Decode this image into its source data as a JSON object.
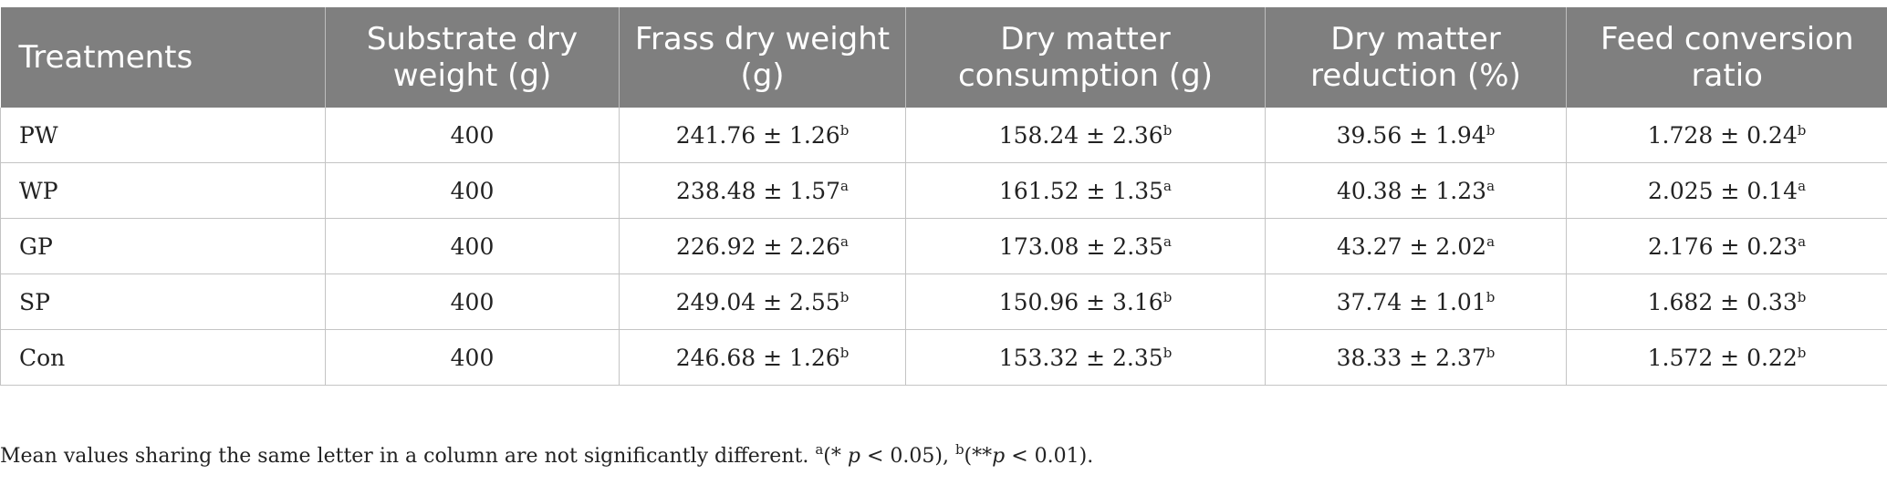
{
  "table": {
    "headers": [
      "Treatments",
      "Substrate dry weight (g)",
      "Frass dry weight (g)",
      "Dry matter consumption (g)",
      "Dry matter reduction (%)",
      "Feed conversion ratio"
    ],
    "rows": [
      {
        "treatment": "PW",
        "substrate": "400",
        "frass": {
          "value": "241.76 ± 1.26",
          "sup": "b"
        },
        "consumption": {
          "value": "158.24 ± 2.36",
          "sup": "b"
        },
        "reduction": {
          "value": "39.56 ± 1.94",
          "sup": "b"
        },
        "fcr": {
          "value": "1.728 ± 0.24",
          "sup": "b"
        }
      },
      {
        "treatment": "WP",
        "substrate": "400",
        "frass": {
          "value": "238.48 ± 1.57",
          "sup": "a"
        },
        "consumption": {
          "value": "161.52 ± 1.35",
          "sup": "a"
        },
        "reduction": {
          "value": "40.38 ± 1.23",
          "sup": "a"
        },
        "fcr": {
          "value": "2.025 ± 0.14",
          "sup": "a"
        }
      },
      {
        "treatment": "GP",
        "substrate": "400",
        "frass": {
          "value": "226.92 ± 2.26",
          "sup": "a"
        },
        "consumption": {
          "value": "173.08 ± 2.35",
          "sup": "a"
        },
        "reduction": {
          "value": "43.27 ± 2.02",
          "sup": "a"
        },
        "fcr": {
          "value": "2.176 ± 0.23",
          "sup": "a"
        }
      },
      {
        "treatment": "SP",
        "substrate": "400",
        "frass": {
          "value": "249.04 ± 2.55",
          "sup": "b"
        },
        "consumption": {
          "value": "150.96 ± 3.16",
          "sup": "b"
        },
        "reduction": {
          "value": "37.74 ± 1.01",
          "sup": "b"
        },
        "fcr": {
          "value": "1.682 ± 0.33",
          "sup": "b"
        }
      },
      {
        "treatment": "Con",
        "substrate": "400",
        "frass": {
          "value": "246.68 ± 1.26",
          "sup": "b"
        },
        "consumption": {
          "value": "153.32 ± 2.35",
          "sup": "b"
        },
        "reduction": {
          "value": "38.33 ± 2.37",
          "sup": "b"
        },
        "fcr": {
          "value": "1.572 ± 0.22",
          "sup": "b"
        }
      }
    ]
  },
  "footnote": {
    "text": "Mean values sharing the same letter in a column are not significantly different.",
    "sup_a": "a",
    "note_a_open": "(* ",
    "note_a_p": "p",
    "note_a_close": " < 0.05), ",
    "sup_b": "b",
    "note_b_open": "(**",
    "note_b_p": "p",
    "note_b_close": " < 0.01)."
  }
}
